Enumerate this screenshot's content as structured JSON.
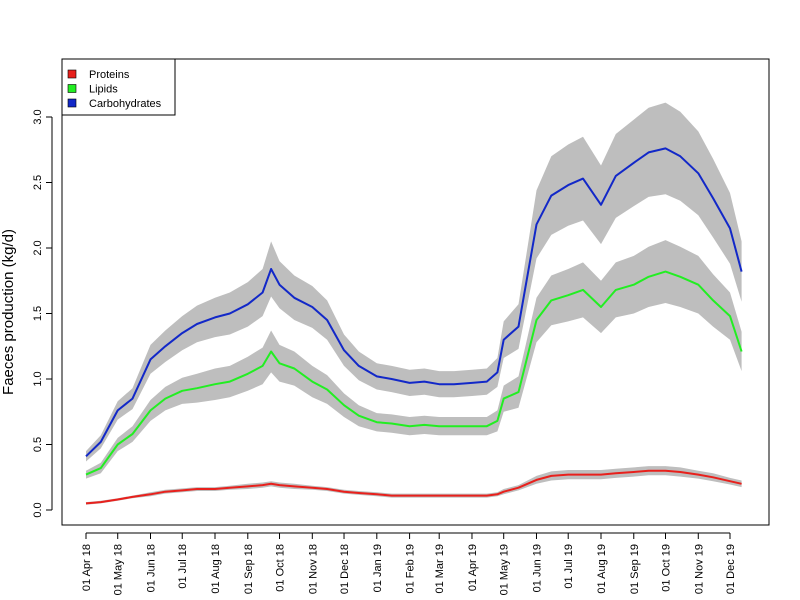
{
  "chart_data": {
    "type": "line",
    "title": "",
    "xlabel": "",
    "ylabel": "Faeces production (kg/d)",
    "ylim": [
      0,
      3.2
    ],
    "xlim": [
      "2018-03-25",
      "2019-12-28"
    ],
    "yticks": [
      0.0,
      0.5,
      1.0,
      1.5,
      2.0,
      2.5,
      3.0
    ],
    "ytick_labels": [
      "0.0",
      "0.5",
      "1.0",
      "1.5",
      "2.0",
      "2.5",
      "3.0"
    ],
    "x_tick_dates": [
      "2018-04-01",
      "2018-05-01",
      "2018-06-01",
      "2018-07-01",
      "2018-08-01",
      "2018-09-01",
      "2018-10-01",
      "2018-11-01",
      "2018-12-01",
      "2019-01-01",
      "2019-02-01",
      "2019-03-01",
      "2019-04-01",
      "2019-05-01",
      "2019-06-01",
      "2019-07-01",
      "2019-08-01",
      "2019-09-01",
      "2019-10-01",
      "2019-11-01",
      "2019-12-01"
    ],
    "x_tick_labels": [
      "01 Apr 18",
      "01 May 18",
      "01 Jun 18",
      "01 Jul 18",
      "01 Aug 18",
      "01 Sep 18",
      "01 Oct 18",
      "01 Nov 18",
      "01 Dec 18",
      "01 Jan 19",
      "01 Feb 19",
      "01 Mar 19",
      "01 Apr 19",
      "01 May 19",
      "01 Jun 19",
      "01 Jul 19",
      "01 Aug 19",
      "01 Sep 19",
      "01 Oct 19",
      "01 Nov 19",
      "01 Dec 19"
    ],
    "legend": {
      "position": "top-left"
    },
    "grid": false,
    "x": [
      "2018-04-01",
      "2018-04-15",
      "2018-05-01",
      "2018-05-15",
      "2018-06-01",
      "2018-06-15",
      "2018-07-01",
      "2018-07-15",
      "2018-08-01",
      "2018-08-15",
      "2018-09-01",
      "2018-09-15",
      "2018-09-23",
      "2018-10-01",
      "2018-10-15",
      "2018-11-01",
      "2018-11-15",
      "2018-12-01",
      "2018-12-15",
      "2019-01-01",
      "2019-01-15",
      "2019-02-01",
      "2019-02-15",
      "2019-03-01",
      "2019-03-15",
      "2019-04-01",
      "2019-04-15",
      "2019-04-25",
      "2019-05-01",
      "2019-05-15",
      "2019-06-01",
      "2019-06-15",
      "2019-07-01",
      "2019-07-15",
      "2019-08-01",
      "2019-08-15",
      "2019-09-01",
      "2019-09-15",
      "2019-10-01",
      "2019-10-15",
      "2019-11-01",
      "2019-11-15",
      "2019-12-01",
      "2019-12-12"
    ],
    "series": [
      {
        "name": "Proteins",
        "color": "#e8201c",
        "band_color": "#bebebe",
        "values": [
          0.05,
          0.06,
          0.08,
          0.1,
          0.12,
          0.14,
          0.15,
          0.16,
          0.16,
          0.17,
          0.18,
          0.19,
          0.2,
          0.19,
          0.18,
          0.17,
          0.16,
          0.14,
          0.13,
          0.12,
          0.11,
          0.11,
          0.11,
          0.11,
          0.11,
          0.11,
          0.11,
          0.12,
          0.14,
          0.17,
          0.23,
          0.26,
          0.27,
          0.27,
          0.27,
          0.28,
          0.29,
          0.3,
          0.3,
          0.29,
          0.27,
          0.25,
          0.22,
          0.2
        ],
        "band_halfwidth": [
          0.01,
          0.01,
          0.01,
          0.01,
          0.015,
          0.015,
          0.015,
          0.015,
          0.015,
          0.015,
          0.02,
          0.02,
          0.02,
          0.02,
          0.02,
          0.015,
          0.015,
          0.015,
          0.015,
          0.015,
          0.015,
          0.015,
          0.015,
          0.015,
          0.015,
          0.015,
          0.015,
          0.015,
          0.02,
          0.02,
          0.03,
          0.035,
          0.035,
          0.035,
          0.035,
          0.035,
          0.035,
          0.035,
          0.035,
          0.035,
          0.03,
          0.03,
          0.025,
          0.025
        ]
      },
      {
        "name": "Lipids",
        "color": "#22ee22",
        "band_color": "#bebebe",
        "values": [
          0.27,
          0.32,
          0.5,
          0.58,
          0.76,
          0.85,
          0.91,
          0.93,
          0.96,
          0.98,
          1.04,
          1.1,
          1.21,
          1.12,
          1.08,
          0.98,
          0.92,
          0.8,
          0.72,
          0.67,
          0.66,
          0.64,
          0.65,
          0.64,
          0.64,
          0.64,
          0.64,
          0.68,
          0.85,
          0.9,
          1.45,
          1.6,
          1.64,
          1.68,
          1.55,
          1.68,
          1.72,
          1.78,
          1.82,
          1.78,
          1.72,
          1.6,
          1.48,
          1.21
        ],
        "band_halfwidth": [
          0.03,
          0.04,
          0.05,
          0.06,
          0.08,
          0.09,
          0.1,
          0.11,
          0.12,
          0.12,
          0.13,
          0.14,
          0.16,
          0.14,
          0.13,
          0.12,
          0.11,
          0.09,
          0.08,
          0.07,
          0.07,
          0.07,
          0.07,
          0.07,
          0.07,
          0.07,
          0.07,
          0.08,
          0.1,
          0.12,
          0.17,
          0.19,
          0.2,
          0.21,
          0.2,
          0.21,
          0.22,
          0.23,
          0.24,
          0.23,
          0.22,
          0.2,
          0.18,
          0.15
        ]
      },
      {
        "name": "Carbohydrates",
        "color": "#1228c8",
        "band_color": "#bebebe",
        "values": [
          0.41,
          0.52,
          0.76,
          0.85,
          1.15,
          1.25,
          1.35,
          1.42,
          1.47,
          1.5,
          1.57,
          1.66,
          1.84,
          1.72,
          1.62,
          1.55,
          1.45,
          1.22,
          1.1,
          1.02,
          1.0,
          0.97,
          0.98,
          0.96,
          0.96,
          0.97,
          0.98,
          1.05,
          1.3,
          1.4,
          2.18,
          2.4,
          2.48,
          2.53,
          2.33,
          2.55,
          2.65,
          2.73,
          2.76,
          2.7,
          2.57,
          2.38,
          2.15,
          1.82
        ],
        "band_halfwidth": [
          0.04,
          0.05,
          0.07,
          0.08,
          0.11,
          0.12,
          0.13,
          0.14,
          0.15,
          0.16,
          0.17,
          0.18,
          0.21,
          0.18,
          0.17,
          0.16,
          0.15,
          0.12,
          0.11,
          0.1,
          0.1,
          0.1,
          0.1,
          0.1,
          0.1,
          0.1,
          0.1,
          0.11,
          0.14,
          0.17,
          0.26,
          0.3,
          0.31,
          0.32,
          0.3,
          0.32,
          0.33,
          0.34,
          0.35,
          0.34,
          0.32,
          0.3,
          0.27,
          0.23
        ]
      }
    ]
  }
}
